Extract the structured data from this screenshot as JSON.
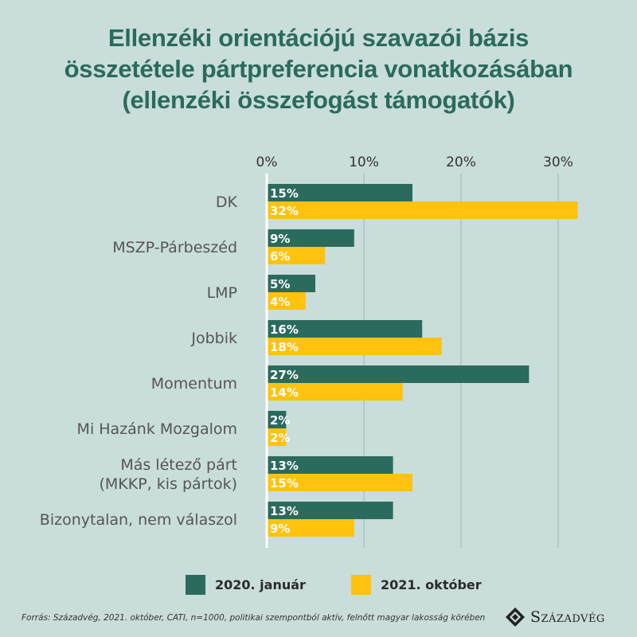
{
  "title_lines": [
    "Ellenzéki orientációjú szavazói bázis",
    "összetétele pártpreferencia vonatkozásában",
    "(ellenzéki összefogást támogatók)"
  ],
  "chart_data": {
    "type": "bar",
    "orientation": "horizontal",
    "categories": [
      [
        "DK"
      ],
      [
        "MSZP-Párbeszéd"
      ],
      [
        "LMP"
      ],
      [
        "Jobbik"
      ],
      [
        "Momentum"
      ],
      [
        "Mi Hazánk Mozgalom"
      ],
      [
        "Más létező párt",
        "(MKKP,  kis pártok)"
      ],
      [
        "Bizonytalan, nem válaszol"
      ]
    ],
    "series": [
      {
        "name": "2020. január",
        "color": "#2b6b5e",
        "values": [
          15,
          9,
          5,
          16,
          27,
          2,
          13,
          13
        ],
        "labels": [
          "15%",
          "9%",
          "5%",
          "16%",
          "27%",
          "2%",
          "13%",
          "13%"
        ]
      },
      {
        "name": "2021. október",
        "color": "#ffc20e",
        "values": [
          32,
          6,
          4,
          18,
          14,
          2,
          15,
          9
        ],
        "labels": [
          "32%",
          "6%",
          "4%",
          "18%",
          "14%",
          "2%",
          "15%",
          "9%"
        ]
      }
    ],
    "x_ticks": [
      0,
      10,
      20,
      30
    ],
    "x_tick_labels": [
      "0%",
      "10%",
      "20%",
      "30%"
    ],
    "xlim": [
      0,
      32
    ],
    "axis_position": "top",
    "grid": true,
    "legend_position": "bottom"
  },
  "footer": {
    "source": "Forrás: Századvég, 2021. október, CATI, n=1000, politikai szempontból aktív, felnőtt magyar lakosság körében",
    "brand": "Századvég"
  }
}
